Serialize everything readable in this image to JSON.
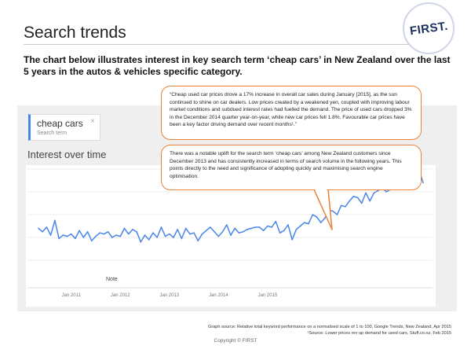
{
  "slide": {
    "title": "Search trends",
    "logo": "FIRST.",
    "intro": "The chart below illustrates interest in key search term ‘cheap cars’ in New Zealand over the last 5 years in the autos & vehicles specific category."
  },
  "search_term": {
    "term": "cheap cars",
    "subtitle": "Search term",
    "close_glyph": "×"
  },
  "interest_label": "Interest over time",
  "note_label": "Note",
  "callouts": [
    "“Cheap used car prices drove a 17% increase in overall car sales during January [2015], as the sun continued to shine on car dealers. Low prices created by a weakened yen, coupled with improving labour market conditions and subdued interest rates had fuelled the demand. The price of used cars dropped 3% in the December 2014 quarter year-on-year, while new car prices fell 1.8%. Favourable car prices have been a key factor driving demand over recent months¹.”",
    "There was a notable uplift for the search term ‘cheap cars’ among New Zealand customers since December 2013 and has consistently increased in terms of search volume in the following years. This points directly to the need and significance of adopting quickly and maximising search engine optimisation."
  ],
  "footer": {
    "source1": "Graph source: Relative total keyword performance on a normalised scale of 1 to 100, Google Trends, New Zealand, Apr 2015",
    "source2": "¹Source: Lower prices rev up demand for used cars, Stuff.co.nz, Feb 2015",
    "copyright": "Copyright © FIRST"
  },
  "colors": {
    "line": "#4a86e8",
    "callout_border": "#e8823a",
    "brand": "#1b2f5e"
  },
  "chart_data": {
    "type": "line",
    "series": [
      {
        "values": [
          48,
          45,
          49,
          42,
          55,
          39,
          42,
          41,
          43,
          39,
          46,
          40,
          45,
          37,
          41,
          44,
          43,
          45,
          40,
          42,
          41,
          48,
          43,
          47,
          45,
          36,
          42,
          38,
          44,
          40,
          49,
          41,
          43,
          40,
          47,
          39,
          48,
          43,
          44,
          37,
          43,
          46,
          49,
          45,
          41,
          45,
          51,
          42,
          48,
          44,
          45,
          47,
          48,
          49,
          49,
          46,
          50,
          49,
          54,
          44,
          46,
          51,
          38,
          47,
          50,
          53,
          52,
          60,
          58,
          53,
          57,
          64,
          63,
          60,
          68,
          67,
          72,
          76,
          75,
          70,
          79,
          72,
          79,
          81,
          84,
          80,
          82,
          86,
          85,
          92,
          86,
          88,
          91,
          99,
          88
        ]
      }
    ],
    "x_ticks": [
      "Jan 2011",
      "Jan 2012",
      "Jan 2013",
      "Jan 2014",
      "Jan 2015"
    ],
    "x_tick_index": [
      8,
      20,
      32,
      44,
      56
    ],
    "x_range": [
      0,
      94
    ],
    "ylim": [
      0,
      100
    ],
    "grid": true,
    "months_per_point": 0.5
  }
}
